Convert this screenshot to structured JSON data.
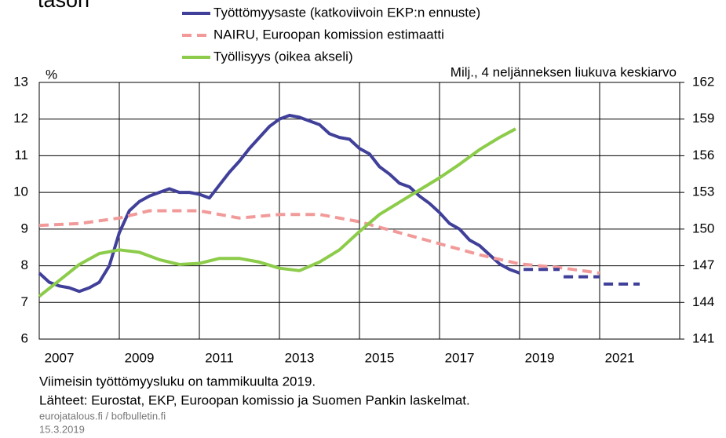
{
  "chart_data": {
    "type": "line",
    "title": "tason",
    "y_label": "%",
    "y2_label": "Milj., 4 neljänneksen liukuva keskiarvo",
    "xlim": [
      2007,
      2023
    ],
    "xticks": [
      2007,
      2009,
      2011,
      2013,
      2015,
      2017,
      2019,
      2021
    ],
    "ylim": [
      6,
      13
    ],
    "yticks": [
      6,
      7,
      8,
      9,
      10,
      11,
      12,
      13
    ],
    "y2lim": [
      141,
      162
    ],
    "y2ticks": [
      141,
      144,
      147,
      150,
      153,
      156,
      159,
      162
    ],
    "grid": true,
    "legend": "top",
    "series": [
      {
        "name": "Työttömyysaste (katkoviivoin EKP:n ennuste)",
        "color": "#40409a",
        "x": [
          2007.0,
          2007.25,
          2007.5,
          2007.75,
          2008.0,
          2008.25,
          2008.5,
          2008.75,
          2009.0,
          2009.25,
          2009.5,
          2009.75,
          2010.0,
          2010.25,
          2010.5,
          2010.75,
          2011.0,
          2011.25,
          2011.5,
          2011.75,
          2012.0,
          2012.25,
          2012.5,
          2012.75,
          2013.0,
          2013.25,
          2013.5,
          2013.75,
          2014.0,
          2014.25,
          2014.5,
          2014.75,
          2015.0,
          2015.25,
          2015.5,
          2015.75,
          2016.0,
          2016.25,
          2016.5,
          2016.75,
          2017.0,
          2017.25,
          2017.5,
          2017.75,
          2018.0,
          2018.25,
          2018.5,
          2018.75,
          2019.0
        ],
        "values": [
          7.8,
          7.55,
          7.45,
          7.4,
          7.3,
          7.4,
          7.55,
          8.0,
          8.9,
          9.5,
          9.75,
          9.9,
          10.0,
          10.1,
          10.0,
          10.0,
          9.95,
          9.85,
          10.2,
          10.55,
          10.85,
          11.2,
          11.5,
          11.8,
          12.0,
          12.1,
          12.05,
          11.95,
          11.85,
          11.6,
          11.5,
          11.45,
          11.2,
          11.05,
          10.7,
          10.5,
          10.25,
          10.15,
          9.9,
          9.7,
          9.45,
          9.15,
          9.0,
          8.7,
          8.55,
          8.3,
          8.05,
          7.9,
          7.8
        ]
      },
      {
        "name": "NAIRU, Euroopan komission estimaatti",
        "color": "#f29a9a",
        "dash": true,
        "x": [
          2007,
          2008,
          2009,
          2009.75,
          2011,
          2012,
          2013,
          2014,
          2015,
          2016,
          2017,
          2018,
          2019,
          2020,
          2021
        ],
        "values": [
          9.1,
          9.15,
          9.3,
          9.5,
          9.5,
          9.3,
          9.4,
          9.4,
          9.2,
          8.9,
          8.6,
          8.3,
          8.05,
          7.95,
          7.8
        ]
      },
      {
        "name": "Työllisyys (oikea akseli)",
        "color": "#8ccc4a",
        "axis": "y2",
        "x": [
          2007,
          2007.5,
          2008,
          2008.5,
          2009,
          2009.5,
          2010,
          2010.5,
          2011,
          2011.5,
          2012,
          2012.5,
          2013,
          2013.5,
          2014,
          2014.5,
          2015,
          2015.5,
          2016,
          2016.5,
          2017,
          2017.5,
          2018,
          2018.5,
          2018.9
        ],
        "values": [
          144.5,
          145.8,
          147.1,
          148.0,
          148.3,
          148.1,
          147.5,
          147.1,
          147.2,
          147.6,
          147.6,
          147.3,
          146.8,
          146.6,
          147.3,
          148.3,
          149.8,
          151.2,
          152.2,
          153.2,
          154.2,
          155.3,
          156.5,
          157.5,
          158.2
        ]
      },
      {
        "color": "#40409a",
        "dash": true,
        "x": [
          2019.1,
          2020.0,
          2020.05,
          2020.1,
          2021.0,
          2021.05,
          2021.1,
          2022.0
        ],
        "values": [
          7.9,
          7.9,
          null,
          7.7,
          7.7,
          null,
          7.5,
          7.5
        ]
      }
    ],
    "notes": [
      "Viimeisin työttömyysluku on tammikuulta 2019.",
      "Lähteet: Eurostat, EKP, Euroopan komissio ja Suomen Pankin laskelmat."
    ],
    "source": "eurojatalous.fi / bofbulletin.fi",
    "date": "15.3.2019"
  }
}
